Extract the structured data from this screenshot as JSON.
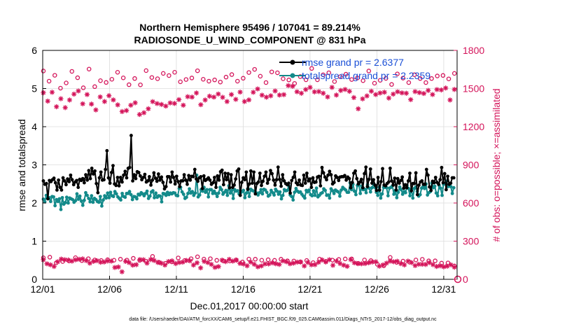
{
  "chart_data": {
    "type": "line",
    "title": "Northern Hemisphere 95496 / 107041 = 89.214%",
    "subtitle": "RADIOSONDE_U_WIND_COMPONENT @ 831 hPa",
    "xlabel": "Dec.01,2017 00:00:00 start",
    "ylabel_left": "rmse and totalspread",
    "ylabel_right": "# of obs: o=possible; ×=assimilated",
    "footer": "data file: /Users/raeder/DAI/ATM_forcXX/CAM6_setup/f.e21.FHIST_BGC.f09_025.CAM6assim.011/Diags_NTrS_2017-12/obs_diag_output.nc",
    "x_ticks": [
      {
        "day": 0,
        "label": "12/01"
      },
      {
        "day": 5,
        "label": "12/06"
      },
      {
        "day": 10,
        "label": "12/11"
      },
      {
        "day": 15,
        "label": "12/16"
      },
      {
        "day": 20,
        "label": "12/21"
      },
      {
        "day": 25,
        "label": "12/26"
      },
      {
        "day": 30,
        "label": "12/31"
      }
    ],
    "xlim": [
      0,
      31
    ],
    "ylim_left": [
      0,
      6
    ],
    "ylim_right": [
      0,
      1800
    ],
    "yticks_left": [
      "0",
      "1",
      "2",
      "3",
      "4",
      "5",
      "6"
    ],
    "yticks_right": [
      "0",
      "300",
      "600",
      "900",
      "1200",
      "1500",
      "1800"
    ],
    "grid": true,
    "colors": {
      "rmse": "#000000",
      "spread": "#138a8a",
      "obs": "#d4145a",
      "legend_text": "#1a4fd6"
    },
    "series": [
      {
        "name": "rmse grand pr = 2.6377",
        "axis": "left",
        "values": [
          2.58,
          2.49,
          2.51,
          2.11,
          2.59,
          2.56,
          2.61,
          2.65,
          2.53,
          2.34,
          2.6,
          2.41,
          2.34,
          2.66,
          2.58,
          2.48,
          2.63,
          2.56,
          2.73,
          2.61,
          2.48,
          2.55,
          2.59,
          2.41,
          2.62,
          2.59,
          2.64,
          2.53,
          2.74,
          2.6,
          2.85,
          2.64,
          2.91,
          2.76,
          2.84,
          2.51,
          2.27,
          2.66,
          2.81,
          2.6,
          2.61,
          2.88,
          3.37,
          2.66,
          2.52,
          2.8,
          2.98,
          2.5,
          2.46,
          2.67,
          2.45,
          2.67,
          2.55,
          2.73,
          2.83,
          2.66,
          2.91,
          2.93,
          3.77,
          2.58,
          2.74,
          2.64,
          2.82,
          2.8,
          2.71,
          2.61,
          2.67,
          2.75,
          2.55,
          2.58,
          2.69,
          2.47,
          2.6,
          2.79,
          2.65,
          2.57,
          2.76,
          2.6,
          2.68,
          2.54,
          2.37,
          2.43,
          2.69,
          2.69,
          2.55,
          2.81,
          2.67,
          2.5,
          2.7,
          2.56,
          2.43,
          2.58,
          2.58,
          2.74,
          2.6,
          2.49,
          2.72,
          2.6,
          2.7,
          2.69,
          2.88,
          2.63,
          2.57,
          2.66,
          2.69,
          2.38,
          2.71,
          2.59,
          2.62,
          2.66,
          2.6,
          2.49,
          2.53,
          2.67,
          2.41,
          2.71,
          2.6,
          2.82,
          2.86,
          2.48,
          2.78,
          2.61,
          2.77,
          2.4,
          2.74,
          2.41,
          2.47,
          2.63,
          2.84,
          2.89,
          2.2,
          2.54,
          2.66,
          2.61,
          2.81,
          2.36,
          2.5,
          2.84,
          2.52,
          2.81,
          2.24,
          2.51,
          2.55,
          2.78,
          2.46,
          2.57,
          2.7,
          2.81,
          2.52,
          2.62,
          2.85,
          2.77,
          2.6,
          2.47,
          2.61,
          2.94,
          2.62,
          2.44,
          2.74,
          2.58,
          2.51,
          2.48,
          2.52,
          2.26,
          2.59,
          2.67,
          2.81,
          2.53,
          2.48,
          2.6,
          2.47,
          2.46,
          2.73,
          2.52,
          2.78,
          2.58,
          2.63,
          2.41,
          2.66,
          2.54,
          2.55,
          2.68,
          2.7,
          2.45,
          2.93,
          2.79,
          2.68,
          2.61,
          2.73,
          2.83,
          2.74,
          2.5,
          2.54,
          2.71,
          2.67,
          2.59,
          2.68,
          2.69,
          2.69,
          2.72,
          2.6,
          2.68,
          2.64,
          2.4,
          2.54,
          2.78,
          2.84,
          2.64,
          2.5,
          2.55,
          2.62,
          2.4,
          2.77,
          2.94,
          2.43,
          2.62,
          2.89,
          2.52,
          2.61,
          2.47,
          2.33,
          2.67,
          2.34,
          2.56,
          2.9,
          2.47,
          2.45,
          2.51,
          2.55,
          2.91,
          2.58,
          2.47,
          2.65,
          2.34,
          2.64,
          2.52,
          2.59,
          2.68,
          2.39,
          2.48,
          2.4,
          2.58,
          2.78,
          2.32,
          2.51,
          2.51,
          2.79,
          2.22,
          2.47,
          2.55,
          2.58,
          2.49,
          2.49,
          2.88,
          2.73,
          2.42,
          2.33,
          2.57,
          2.53,
          2.67,
          2.54,
          2.49,
          2.61,
          2.93,
          2.53,
          2.77,
          2.35,
          2.7,
          2.49,
          2.52,
          2.66,
          2.66
        ]
      },
      {
        "name": "totalspread grand pr = 2.2359",
        "axis": "left",
        "values": [
          2.1,
          2.03,
          2.2,
          2.12,
          2.14,
          2.04,
          2.17,
          2.16,
          1.93,
          2.09,
          2.04,
          2.11,
          1.83,
          2.14,
          1.97,
          2.01,
          2.15,
          2.0,
          2.13,
          2.11,
          2.09,
          2.02,
          2.06,
          2.24,
          2.1,
          2.18,
          2.05,
          1.94,
          2.07,
          2.27,
          2.2,
          2.12,
          2.03,
          2.19,
          2.02,
          2.12,
          2.09,
          2.04,
          2.02,
          2.17,
          1.92,
          2.08,
          2.19,
          2.13,
          2.26,
          2.14,
          2.28,
          2.19,
          2.17,
          2.3,
          2.24,
          2.16,
          2.12,
          2.08,
          2.25,
          2.17,
          2.15,
          2.25,
          2.25,
          2.3,
          2.22,
          2.09,
          2.17,
          2.16,
          2.11,
          2.23,
          2.21,
          2.27,
          2.24,
          2.19,
          2.25,
          2.31,
          2.12,
          2.18,
          2.29,
          2.32,
          2.14,
          2.26,
          2.15,
          2.19,
          2.18,
          2.03,
          2.25,
          2.24,
          2.2,
          2.28,
          2.22,
          2.26,
          2.24,
          2.27,
          2.26,
          2.2,
          2.19,
          2.38,
          2.41,
          2.29,
          2.23,
          2.12,
          2.15,
          2.25,
          2.37,
          2.26,
          2.3,
          2.2,
          2.26,
          2.73,
          2.16,
          2.21,
          2.35,
          2.31,
          2.41,
          2.28,
          2.35,
          2.16,
          2.35,
          2.35,
          2.25,
          2.31,
          2.25,
          2.17,
          2.26,
          2.41,
          2.35,
          2.23,
          2.28,
          2.33,
          2.2,
          2.45,
          2.26,
          2.33,
          2.12,
          2.35,
          2.31,
          2.32,
          2.24,
          2.26,
          2.3,
          2.33,
          2.14,
          2.26,
          2.38,
          2.17,
          2.36,
          2.33,
          2.31,
          2.3,
          2.26,
          2.21,
          2.27,
          2.35,
          2.24,
          2.36,
          2.34,
          2.28,
          2.18,
          2.21,
          2.33,
          2.27,
          2.21,
          2.36,
          2.31,
          2.23,
          2.29,
          2.11,
          2.2,
          2.35,
          2.32,
          2.33,
          2.45,
          2.21,
          2.17,
          2.08,
          2.28,
          2.38,
          2.31,
          2.28,
          2.29,
          2.23,
          2.18,
          2.13,
          2.33,
          2.29,
          2.34,
          2.22,
          2.19,
          2.32,
          2.2,
          2.39,
          2.16,
          2.2,
          2.25,
          2.27,
          2.37,
          2.33,
          2.2,
          2.21,
          2.13,
          2.37,
          2.32,
          2.25,
          2.34,
          2.31,
          2.29,
          2.18,
          2.34,
          2.41,
          2.37,
          2.34,
          2.28,
          2.28,
          2.53,
          2.35,
          2.49,
          2.31,
          2.22,
          2.46,
          2.48,
          2.25,
          2.44,
          2.35,
          2.36,
          2.27,
          2.48,
          2.39,
          2.29,
          2.4,
          2.5,
          2.41,
          2.28,
          2.2,
          2.41,
          2.13,
          2.24,
          2.41,
          2.41,
          2.4,
          2.19,
          2.39,
          2.41,
          2.45,
          2.23,
          2.33,
          2.14,
          2.28,
          2.42,
          2.35,
          2.23,
          2.3,
          2.27,
          2.46,
          2.38,
          2.19,
          2.36,
          2.13,
          2.38,
          2.42,
          2.3,
          2.18,
          2.22,
          2.39,
          2.43,
          2.38,
          2.5,
          2.21,
          2.27,
          2.3,
          2.52,
          2.4,
          2.44,
          2.26,
          2.19,
          2.46,
          2.39,
          2.2,
          2.49,
          2.51,
          2.57,
          2.43,
          2.44,
          2.43,
          2.25,
          2.4
        ]
      },
      {
        "name": "possible obs (upper)",
        "axis": "right",
        "values": [
          1638,
          1558,
          1604,
          1503,
          1544,
          1635,
          1585,
          1506,
          1653,
          1515,
          1562,
          1548,
          1573,
          1628,
          1584,
          1530,
          1579,
          1529,
          1641,
          1587,
          1577,
          1619,
          1602,
          1628,
          1553,
          1571,
          1583,
          1640,
          1573,
          1558,
          1568,
          1551,
          1590,
          1610,
          1558,
          1581,
          1626,
          1651,
          1597,
          1547,
          1631,
          1624,
          1577,
          1568,
          1540,
          1594,
          1569,
          1658,
          1569,
          1608,
          1624,
          1555,
          1593,
          1613,
          1571,
          1583,
          1562,
          1638,
          1542,
          1565,
          1580,
          1532,
          1615,
          1582,
          1547,
          1609,
          1579,
          1547,
          1579,
          1599,
          1603,
          1576,
          1619
        ]
      },
      {
        "name": "assimilated obs (upper)",
        "axis": "right",
        "values": [
          1467,
          1401,
          1471,
          1357,
          1420,
          1350,
          1410,
          1456,
          1481,
          1380,
          1453,
          1378,
          1332,
          1434,
          1398,
          1444,
          1411,
          1372,
          1319,
          1327,
          1369,
          1388,
          1296,
          1310,
          1341,
          1397,
          1382,
          1375,
          1362,
          1387,
          1383,
          1413,
          1369,
          1436,
          1433,
          1465,
          1373,
          1410,
          1440,
          1433,
          1457,
          1431,
          1398,
          1453,
          1415,
          1472,
          1398,
          1411,
          1471,
          1497,
          1448,
          1432,
          1443,
          1481,
          1449,
          1452,
          1523,
          1518,
          1475,
          1463,
          1492,
          1509,
          1474,
          1476,
          1463,
          1434,
          1509,
          1449,
          1485,
          1493,
          1478,
          1429,
          1341,
          1419,
          1442,
          1479,
          1453,
          1465,
          1471,
          1425,
          1456,
          1475,
          1466,
          1463,
          1413,
          1476,
          1468,
          1461,
          1485,
          1453,
          1492,
          1489,
          1504,
          1410,
          1493
        ]
      },
      {
        "name": "possible obs (lower)",
        "axis": "right",
        "values": [
          169,
          174,
          129,
          140,
          144,
          170,
          147,
          162,
          152,
          148,
          154,
          150,
          158,
          151,
          165,
          149,
          142,
          180,
          134,
          126,
          137,
          168,
          148,
          162,
          177,
          159,
          162,
          149,
          145,
          144,
          153,
          136,
          159,
          158,
          150,
          154,
          149,
          158,
          145,
          144,
          137,
          148,
          131,
          159,
          142,
          151,
          156,
          160,
          160,
          126,
          152,
          147,
          118,
          106,
          172,
          133,
          143,
          135,
          152,
          157,
          145,
          145,
          127,
          129,
          105
        ]
      },
      {
        "name": "assimilated obs (lower)",
        "axis": "right",
        "values": [
          154,
          122,
          114,
          101,
          138,
          159,
          154,
          152,
          143,
          153,
          158,
          161,
          147,
          127,
          141,
          146,
          134,
          136,
          144,
          143,
          93,
          97,
          59,
          141,
          131,
          111,
          115,
          155,
          154,
          127,
          155,
          148,
          133,
          126,
          112,
          140,
          145,
          124,
          132,
          135,
          148,
          145,
          112,
          130,
          90,
          141,
          132,
          117,
          94,
          100,
          151,
          139,
          157,
          143,
          150,
          125,
          120,
          106,
          136,
          118,
          98,
          105,
          121,
          121,
          129,
          122,
          117,
          145,
          138,
          122,
          127,
          135,
          136,
          105,
          133,
          114,
          115,
          134,
          152,
          136,
          154,
          110,
          143,
          124,
          111,
          102,
          155,
          130,
          123,
          122,
          124,
          130,
          136,
          138,
          103,
          113,
          127,
          143,
          138,
          142,
          123,
          113,
          143,
          131,
          108,
          118,
          118,
          117,
          131,
          115,
          101,
          106,
          98,
          103,
          114,
          95
        ]
      }
    ]
  }
}
